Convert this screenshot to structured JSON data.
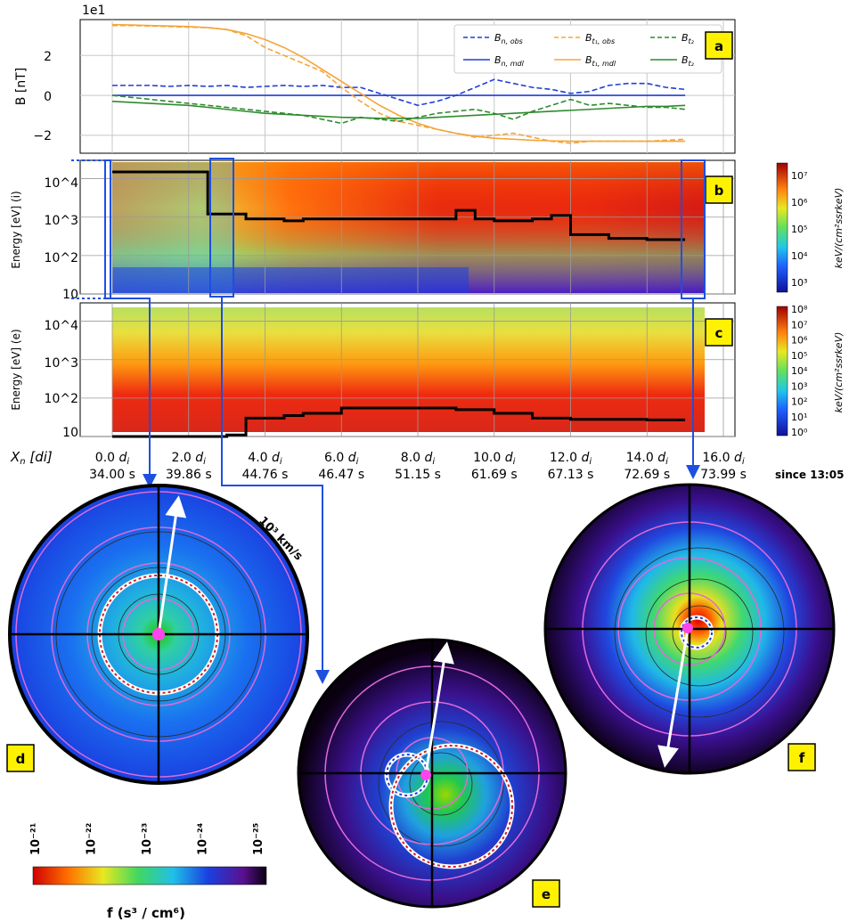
{
  "figure": {
    "scale_note": "1e1",
    "xlabel": "X_n [di]",
    "since_label": "since 13:05",
    "panel_labels": [
      "a",
      "b",
      "c",
      "d",
      "e",
      "f"
    ],
    "x_ticks_di": [
      "0.0",
      "2.0",
      "4.0",
      "6.0",
      "8.0",
      "10.0",
      "12.0",
      "14.0",
      "16.0"
    ],
    "x_ticks_time": [
      "34.00 s",
      "39.86 s",
      "44.76 s",
      "46.47 s",
      "51.15 s",
      "61.69 s",
      "67.13 s",
      "72.69 s",
      "73.99 s"
    ],
    "di_unit": "d",
    "di_sub": "i",
    "speed_label": "10³ km/s",
    "colorbar_f_label": "f (s³ / cm⁶)",
    "colorbar_f_ticks": [
      "10⁻²¹",
      "10⁻²²",
      "10⁻²³",
      "10⁻²⁴",
      "10⁻²⁵"
    ]
  },
  "chart_data": [
    {
      "type": "line",
      "panel": "a",
      "ylabel": "B [nT]",
      "xlim": [
        0,
        16
      ],
      "ylim": [
        -2.9,
        3.8
      ],
      "yticks": [
        -2,
        0,
        2
      ],
      "legend_position": "top-right",
      "x": [
        0,
        0.5,
        1,
        1.5,
        2,
        2.5,
        3,
        3.5,
        4,
        4.5,
        5,
        5.5,
        6,
        6.5,
        7,
        7.5,
        8,
        8.5,
        9,
        9.5,
        10,
        10.5,
        11,
        11.5,
        12,
        12.5,
        13,
        13.5,
        14,
        14.5,
        15
      ],
      "series": [
        {
          "name": "B_n,obs",
          "color": "#1f3fd6",
          "dash": true,
          "values": [
            0.5,
            0.5,
            0.5,
            0.45,
            0.5,
            0.45,
            0.5,
            0.4,
            0.45,
            0.5,
            0.45,
            0.5,
            0.4,
            0.4,
            0.1,
            -0.2,
            -0.5,
            -0.3,
            0,
            0.4,
            0.8,
            0.6,
            0.4,
            0.3,
            0.1,
            0.2,
            0.5,
            0.6,
            0.6,
            0.4,
            0.3
          ]
        },
        {
          "name": "B_n,mdl",
          "color": "#1f3fd6",
          "dash": false,
          "values": [
            0,
            0,
            0,
            0,
            0,
            0,
            0,
            0,
            0,
            0,
            0,
            0,
            0,
            0,
            0,
            0,
            0,
            0,
            0,
            0,
            0,
            0,
            0,
            0,
            0,
            0,
            0,
            0,
            0,
            0,
            0
          ]
        },
        {
          "name": "B_t1,obs",
          "color": "#f5a53a",
          "dash": true,
          "values": [
            3.5,
            3.5,
            3.48,
            3.45,
            3.42,
            3.4,
            3.3,
            3.0,
            2.4,
            2.0,
            1.6,
            1.2,
            0.4,
            -0.3,
            -0.9,
            -1.3,
            -1.5,
            -1.7,
            -1.9,
            -2.1,
            -2.0,
            -1.9,
            -2.1,
            -2.3,
            -2.4,
            -2.3,
            -2.3,
            -2.3,
            -2.3,
            -2.25,
            -2.2
          ]
        },
        {
          "name": "B_t1,mdl",
          "color": "#f5a53a",
          "dash": false,
          "values": [
            3.55,
            3.53,
            3.5,
            3.48,
            3.45,
            3.4,
            3.3,
            3.1,
            2.8,
            2.4,
            1.9,
            1.3,
            0.7,
            0.1,
            -0.5,
            -1.0,
            -1.4,
            -1.7,
            -1.9,
            -2.05,
            -2.15,
            -2.2,
            -2.25,
            -2.28,
            -2.3,
            -2.3,
            -2.3,
            -2.3,
            -2.3,
            -2.3,
            -2.3
          ]
        },
        {
          "name": "B_t2,obs",
          "color": "#2e8b2e",
          "dash": true,
          "values": [
            0,
            -0.1,
            -0.2,
            -0.3,
            -0.4,
            -0.5,
            -0.6,
            -0.7,
            -0.8,
            -0.9,
            -1.0,
            -1.2,
            -1.4,
            -1.1,
            -1.2,
            -1.3,
            -1.1,
            -0.9,
            -0.8,
            -0.7,
            -0.9,
            -1.2,
            -0.8,
            -0.5,
            -0.2,
            -0.5,
            -0.4,
            -0.5,
            -0.6,
            -0.6,
            -0.7
          ]
        },
        {
          "name": "B_t2,mdl",
          "color": "#2e8b2e",
          "dash": false,
          "values": [
            -0.3,
            -0.35,
            -0.4,
            -0.45,
            -0.5,
            -0.6,
            -0.7,
            -0.8,
            -0.9,
            -0.95,
            -1.0,
            -1.05,
            -1.1,
            -1.12,
            -1.15,
            -1.15,
            -1.15,
            -1.1,
            -1.05,
            -1.0,
            -0.95,
            -0.9,
            -0.85,
            -0.8,
            -0.75,
            -0.7,
            -0.65,
            -0.6,
            -0.55,
            -0.55,
            -0.5
          ]
        }
      ]
    },
    {
      "type": "heatmap",
      "panel": "b",
      "ylabel": "Energy [eV] (i)",
      "y_scale": "log",
      "yticks": [
        "10",
        "10^2",
        "10^3",
        "10^4"
      ],
      "ylim_eV": [
        10,
        30000
      ],
      "colorbar_label": "keV/(cm²ssrkeV)",
      "colorbar_ticks": [
        "10³",
        "10⁴",
        "10⁵",
        "10⁶",
        "10⁷"
      ],
      "black_trace_x": [
        0,
        2.5,
        2.5,
        3.5,
        4.5,
        5,
        6,
        7,
        8,
        8.5,
        9,
        9.5,
        10,
        11,
        11.5,
        12,
        13,
        14,
        15
      ],
      "black_trace_eV": [
        15000,
        14000,
        1200,
        900,
        800,
        900,
        900,
        900,
        900,
        900,
        1500,
        900,
        800,
        900,
        1100,
        350,
        280,
        260,
        260
      ]
    },
    {
      "type": "heatmap",
      "panel": "c",
      "ylabel": "Energy [eV] (e)",
      "y_scale": "log",
      "yticks": [
        "10",
        "10^2",
        "10^3",
        "10^4"
      ],
      "ylim_eV": [
        10,
        30000
      ],
      "colorbar_label": "keV/(cm²ssrkeV)",
      "colorbar_ticks": [
        "10⁰",
        "10¹",
        "10²",
        "10³",
        "10⁴",
        "10⁵",
        "10⁶",
        "10⁷",
        "10⁸"
      ],
      "black_trace_x": [
        0,
        3,
        3.5,
        4.5,
        5,
        6,
        7,
        8,
        9,
        10,
        11,
        12,
        13,
        14,
        15
      ],
      "black_trace_eV": [
        10,
        11,
        30,
        35,
        40,
        55,
        55,
        55,
        50,
        40,
        30,
        28,
        28,
        27,
        27
      ]
    }
  ],
  "velocity_panels": [
    {
      "label": "d",
      "peak_color": "#22c800"
    },
    {
      "label": "e",
      "peak_color": "#9bd800"
    },
    {
      "label": "f",
      "peak_color": "#e00000"
    }
  ],
  "colors": {
    "connector": "#1f4fe0",
    "magenta": "#ff44ee",
    "circle_guides": "#e06ad8",
    "badge": "#fff200"
  }
}
